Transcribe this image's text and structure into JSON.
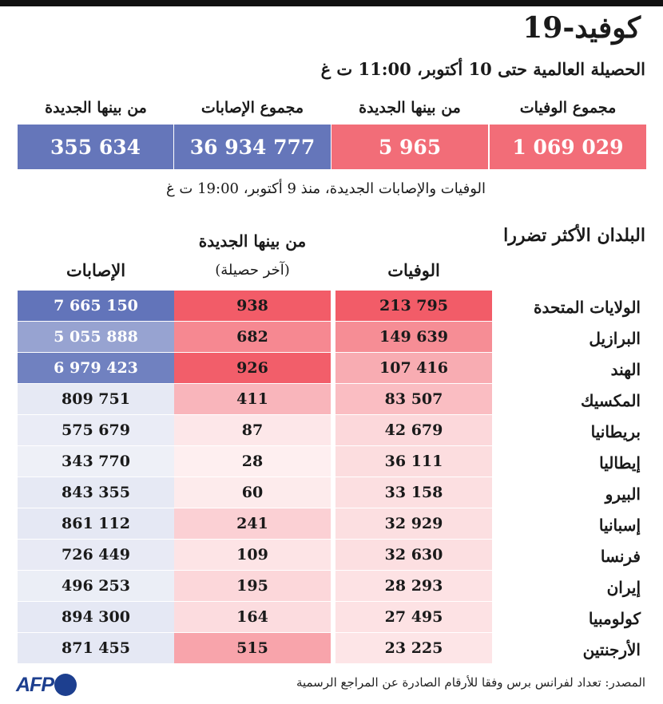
{
  "header": {
    "title": "كوفيد-19",
    "subtitle": "الحصيلة العالمية حتى 10 أكتوبر، 11:00 ت غ",
    "labels": {
      "total_deaths": "مجموع الوفيات",
      "new_deaths": "من بينها الجديدة",
      "total_cases": "مجموع الإصابات",
      "new_cases": "من بينها الجديدة"
    },
    "values": {
      "total_deaths": "1 069 029",
      "new_deaths": "5 965",
      "total_cases": "36 934 777",
      "new_cases": "355 634"
    },
    "note": "الوفيات والإصابات الجديدة، منذ 9 أكتوبر، 19:00 ت غ"
  },
  "table": {
    "section_title": "البلدان الأكثر تضررا",
    "col_deaths": "الوفيات",
    "col_new": "من بينها الجديدة",
    "col_new_sub": "(آخر حصيلة)",
    "col_cases": "الإصابات",
    "rows": [
      {
        "country": "الولايات المتحدة",
        "deaths": "213 795",
        "new": "938",
        "cases": "7 665 150"
      },
      {
        "country": "البرازيل",
        "deaths": "149 639",
        "new": "682",
        "cases": "5 055 888"
      },
      {
        "country": "الهند",
        "deaths": "107 416",
        "new": "926",
        "cases": "6 979 423"
      },
      {
        "country": "المكسيك",
        "deaths": "83 507",
        "new": "411",
        "cases": "809 751"
      },
      {
        "country": "بريطانيا",
        "deaths": "42 679",
        "new": "87",
        "cases": "575 679"
      },
      {
        "country": "إيطاليا",
        "deaths": "36 111",
        "new": "28",
        "cases": "343 770"
      },
      {
        "country": "البيرو",
        "deaths": "33 158",
        "new": "60",
        "cases": "843 355"
      },
      {
        "country": "إسبانيا",
        "deaths": "32 929",
        "new": "241",
        "cases": "861 112"
      },
      {
        "country": "فرنسا",
        "deaths": "32 630",
        "new": "109",
        "cases": "726 449"
      },
      {
        "country": "إيران",
        "deaths": "28 293",
        "new": "195",
        "cases": "496 253"
      },
      {
        "country": "كولومبيا",
        "deaths": "27 495",
        "new": "164",
        "cases": "894 300"
      },
      {
        "country": "الأرجنتين",
        "deaths": "23 225",
        "new": "515",
        "cases": "871 455"
      }
    ]
  },
  "colors": {
    "red": "#f26d78",
    "blue": "#6576ba",
    "red_rgb": [
      242,
      92,
      104
    ],
    "blue_rgb": [
      98,
      116,
      186
    ]
  },
  "footer": {
    "logo": "AFP",
    "source": "المصدر: تعداد لفرانس برس وفقا للأرقام الصادرة عن المراجع الرسمية"
  }
}
